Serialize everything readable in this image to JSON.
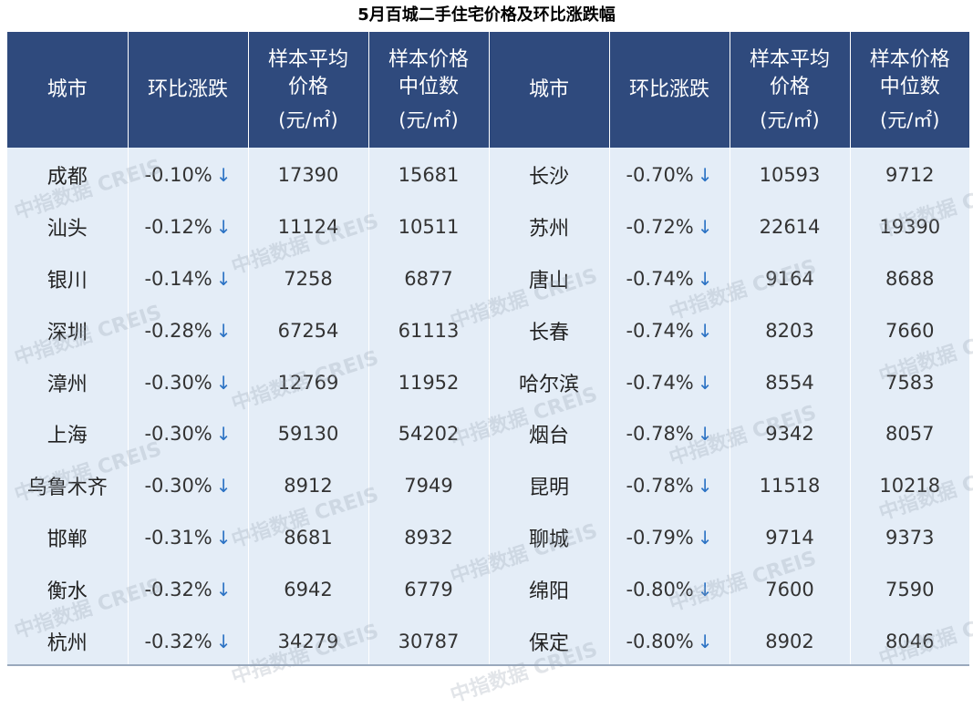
{
  "title": "5月百城二手住宅价格及环比涨跌幅",
  "headers": [
    {
      "line1": "城市",
      "line2": "",
      "unit": ""
    },
    {
      "line1": "环比涨跌",
      "line2": "",
      "unit": ""
    },
    {
      "line1": "样本平均",
      "line2": "价格",
      "unit": "(元/㎡)"
    },
    {
      "line1": "样本价格",
      "line2": "中位数",
      "unit": "(元/㎡)"
    },
    {
      "line1": "城市",
      "line2": "",
      "unit": ""
    },
    {
      "line1": "环比涨跌",
      "line2": "",
      "unit": ""
    },
    {
      "line1": "样本平均",
      "line2": "价格",
      "unit": "(元/㎡)"
    },
    {
      "line1": "样本价格",
      "line2": "中位数",
      "unit": "(元/㎡)"
    }
  ],
  "down_arrow": "↓",
  "rows": [
    {
      "c1": "成都",
      "ch1": "-0.10%",
      "avg1": "17390",
      "med1": "15681",
      "c2": "长沙",
      "ch2": "-0.70%",
      "avg2": "10593",
      "med2": "9712"
    },
    {
      "c1": "汕头",
      "ch1": "-0.12%",
      "avg1": "11124",
      "med1": "10511",
      "c2": "苏州",
      "ch2": "-0.72%",
      "avg2": "22614",
      "med2": "19390"
    },
    {
      "c1": "银川",
      "ch1": "-0.14%",
      "avg1": "7258",
      "med1": "6877",
      "c2": "唐山",
      "ch2": "-0.74%",
      "avg2": "9164",
      "med2": "8688"
    },
    {
      "c1": "深圳",
      "ch1": "-0.28%",
      "avg1": "67254",
      "med1": "61113",
      "c2": "长春",
      "ch2": "-0.74%",
      "avg2": "8203",
      "med2": "7660"
    },
    {
      "c1": "漳州",
      "ch1": "-0.30%",
      "avg1": "12769",
      "med1": "11952",
      "c2": "哈尔滨",
      "ch2": "-0.74%",
      "avg2": "8554",
      "med2": "7583"
    },
    {
      "c1": "上海",
      "ch1": "-0.30%",
      "avg1": "59130",
      "med1": "54202",
      "c2": "烟台",
      "ch2": "-0.78%",
      "avg2": "9342",
      "med2": "8057"
    },
    {
      "c1": "乌鲁木齐",
      "ch1": "-0.30%",
      "avg1": "8912",
      "med1": "7949",
      "c2": "昆明",
      "ch2": "-0.78%",
      "avg2": "11518",
      "med2": "10218"
    },
    {
      "c1": "邯郸",
      "ch1": "-0.31%",
      "avg1": "8681",
      "med1": "8932",
      "c2": "聊城",
      "ch2": "-0.79%",
      "avg2": "9714",
      "med2": "9373"
    },
    {
      "c1": "衡水",
      "ch1": "-0.32%",
      "avg1": "6942",
      "med1": "6779",
      "c2": "绵阳",
      "ch2": "-0.80%",
      "avg2": "7600",
      "med2": "7590"
    },
    {
      "c1": "杭州",
      "ch1": "-0.32%",
      "avg1": "34279",
      "med1": "30787",
      "c2": "保定",
      "ch2": "-0.80%",
      "avg2": "8902",
      "med2": "8046"
    }
  ],
  "watermark": "中指数据 CREIS",
  "colors": {
    "header_bg": "#2f4a7d",
    "body_bg": "#e4edf7",
    "arrow": "#2b72c4"
  }
}
